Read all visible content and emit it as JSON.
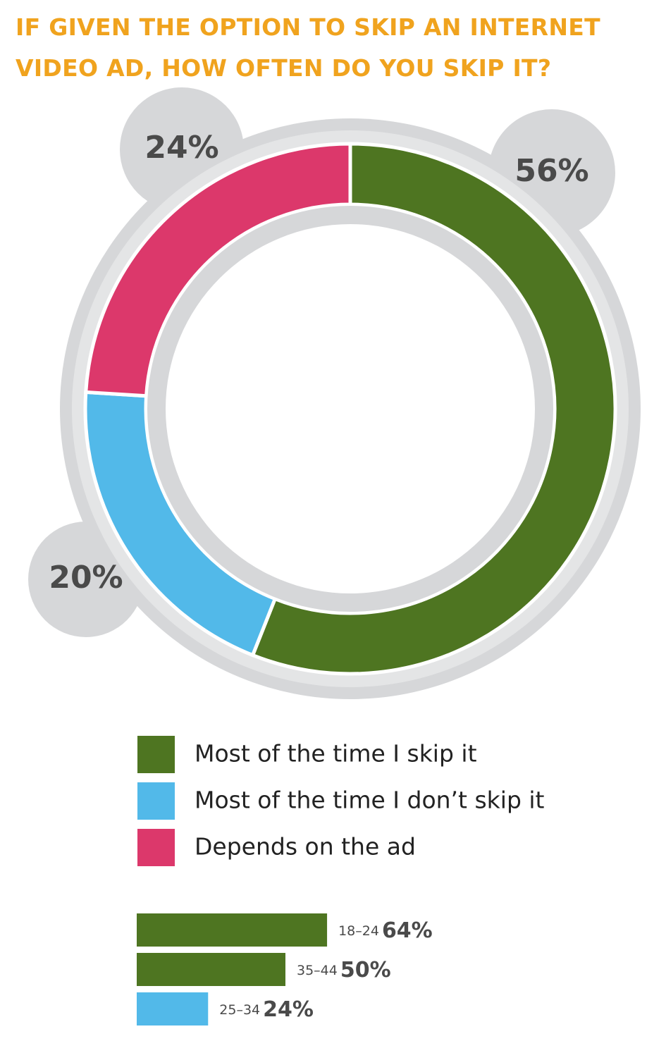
{
  "chart_data": [
    {
      "type": "donut",
      "title": "IF GIVEN THE OPTION TO SKIP AN INTERNET VIDEO AD, HOW OFTEN DO YOU SKIP IT?",
      "categories": [
        "Most of the time I skip it",
        "Most of the time I don’t skip it",
        "Depends on the ad"
      ],
      "values": [
        56,
        20,
        24
      ],
      "value_labels": [
        "56%",
        "20%",
        "24%"
      ],
      "colors": [
        "#4e7521",
        "#52b9e9",
        "#dc386b"
      ]
    },
    {
      "type": "hbar",
      "categories": [
        "18–24",
        "35–44",
        "25–34"
      ],
      "values": [
        64,
        50,
        24
      ],
      "value_labels": [
        "64%",
        "50%",
        "24%"
      ],
      "colors": [
        "#4e7521",
        "#4e7521",
        "#52b9e9"
      ]
    }
  ]
}
